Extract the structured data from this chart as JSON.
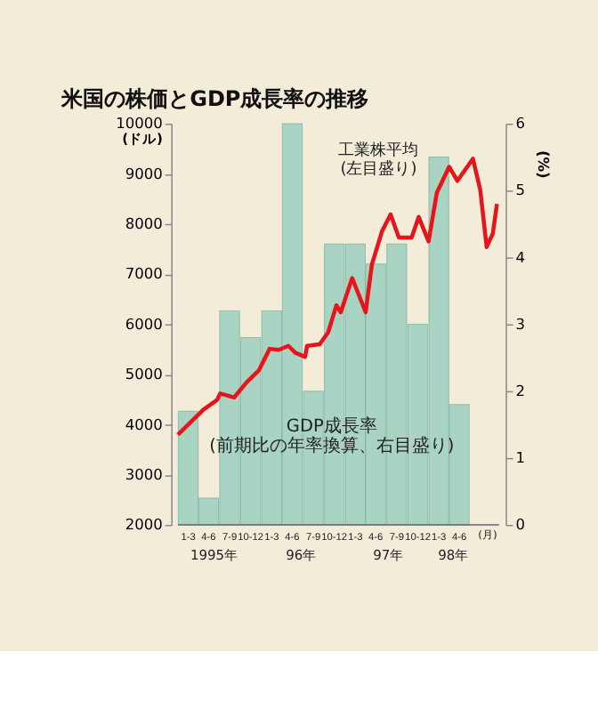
{
  "chart_data": {
    "type": "bar",
    "title": "米国の株価とGDP成長率の推移",
    "ylabel": "(ドル)",
    "y2label": "(%)",
    "xlabel": "(月)",
    "x": [
      "1995-02-15",
      "1995-05-15",
      "1995-08-15",
      "1995-11-15",
      "1996-02-15",
      "1996-05-15",
      "1996-08-15",
      "1996-11-15",
      "1997-02-15",
      "1997-05-15",
      "1997-08-15",
      "1997-11-15",
      "1998-02-15",
      "1998-05-15"
    ],
    "xlim": [
      "1995-01-01",
      "1998-11-05"
    ],
    "xticks": [
      {
        "value": "1995-02-15",
        "label": "1-3"
      },
      {
        "value": "1995-05-15",
        "label": "4-6"
      },
      {
        "value": "1995-08-15",
        "label": "7-9"
      },
      {
        "value": "1995-11-15",
        "label": "10-12"
      },
      {
        "value": "1996-02-15",
        "label": "1-3"
      },
      {
        "value": "1996-05-15",
        "label": "4-6"
      },
      {
        "value": "1996-08-15",
        "label": "7-9"
      },
      {
        "value": "1996-11-15",
        "label": "10-12"
      },
      {
        "value": "1997-02-15",
        "label": "1-3"
      },
      {
        "value": "1997-05-15",
        "label": "4-6"
      },
      {
        "value": "1997-08-15",
        "label": "7-9"
      },
      {
        "value": "1997-11-15",
        "label": "10-12"
      },
      {
        "value": "1998-02-15",
        "label": "1-3"
      },
      {
        "value": "1998-05-15",
        "label": "4-6"
      }
    ],
    "ylim": [
      2000,
      10000
    ],
    "yticks": [
      2000,
      3000,
      4000,
      5000,
      6000,
      7000,
      8000,
      9000,
      10000
    ],
    "y2lim": [
      0,
      6
    ],
    "y2ticks": [
      0,
      1,
      2,
      3,
      4,
      5,
      6
    ],
    "series": [
      {
        "axis": "y2",
        "color": "#a9d3c3",
        "values": [
          1.7,
          0.4,
          3.2,
          2.8,
          3.2,
          6.0,
          2.0,
          4.2,
          4.2,
          3.9,
          4.2,
          3.0,
          5.5,
          1.8
        ]
      },
      {
        "type": "line",
        "color": "#e8141c",
        "x": [
          "1995-01-01",
          "1995-04-23",
          "1995-06-21",
          "1995-07-05",
          "1995-09-04",
          "1995-10-28",
          "1995-12-21",
          "1996-02-06",
          "1996-03-17",
          "1996-04-28",
          "1996-05-29",
          "1996-07-10",
          "1996-07-19",
          "1996-09-12",
          "1996-10-19",
          "1996-11-24",
          "1996-12-13",
          "1997-02-01",
          "1997-04-01",
          "1997-04-28",
          "1997-06-12",
          "1997-07-19",
          "1997-08-24",
          "1997-10-19",
          "1997-11-19",
          "1998-01-01",
          "1998-02-06",
          "1998-04-01",
          "1998-05-07",
          "1998-07-14",
          "1998-08-15",
          "1998-09-12",
          "1998-10-09",
          "1998-10-27"
        ],
        "values": [
          3800,
          4300,
          4490,
          4620,
          4540,
          4840,
          5080,
          5510,
          5490,
          5570,
          5430,
          5350,
          5570,
          5600,
          5840,
          6380,
          6240,
          6920,
          6240,
          7190,
          7860,
          8190,
          7730,
          7730,
          8140,
          7650,
          8620,
          9140,
          8860,
          9300,
          8680,
          7540,
          7810,
          8400
        ]
      }
    ],
    "annotations": [
      "工業株平均 (左目盛り)",
      "GDP成長率 (前期比の年率換算、右目盛り)",
      "1995年",
      "96年",
      "97年",
      "98年"
    ],
    "grid": false
  }
}
